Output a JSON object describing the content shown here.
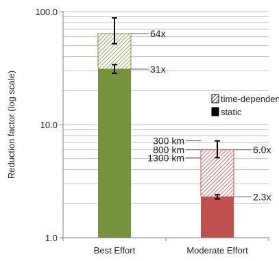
{
  "chart_data": {
    "type": "bar",
    "stacked": true,
    "log_scale": true,
    "ylabel": "Reduction factor (log scale)",
    "ylim": [
      1,
      100
    ],
    "yticks": [
      {
        "value": 1,
        "label": "1.0"
      },
      {
        "value": 10,
        "label": "10.0"
      },
      {
        "value": 100,
        "label": "100.0"
      }
    ],
    "grid": true,
    "legend_position": "right",
    "categories": [
      "Best Effort",
      "Moderate Effort"
    ],
    "series": [
      {
        "name": "static",
        "pattern": "solid",
        "values": [
          31,
          2.3
        ],
        "labels": [
          "31x",
          "2.3x"
        ],
        "error": [
          [
            28.5,
            34
          ],
          [
            2.2,
            2.4
          ]
        ]
      },
      {
        "name": "time-dependent",
        "pattern": "hatched",
        "values": [
          64,
          6.0
        ],
        "labels": [
          "64x",
          "6.0x"
        ],
        "error": [
          [
            52,
            88
          ],
          [
            5.1,
            7.2
          ]
        ]
      }
    ],
    "colors": {
      "Best Effort": "#76923c",
      "Moderate Effort": "#c0504d",
      "grid": "#bfbfbf",
      "axis": "#7f7f7f"
    },
    "annotations": [
      {
        "text": "300 km",
        "category": "Moderate Effort",
        "y": 7.2
      },
      {
        "text": "800 km",
        "category": "Moderate Effort",
        "y": 6.0
      },
      {
        "text": "1300 km",
        "category": "Moderate Effort",
        "y": 5.1
      }
    ]
  }
}
